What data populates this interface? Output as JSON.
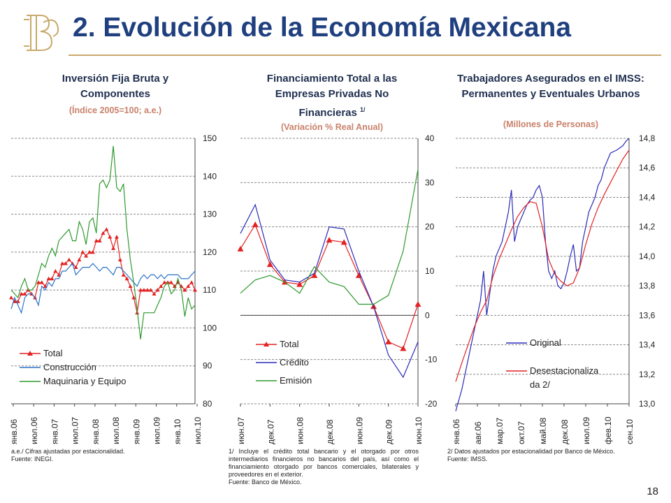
{
  "header": {
    "title": "2. Evolución de la Economía Mexicana",
    "page_number": "18"
  },
  "panels": [
    {
      "title": "Inversión Fija Bruta y Componentes",
      "subtitle": "(Índice 2005=100; a.e.)",
      "note": "a.e./ Cifras ajustadas por estacionalidad.\nFuente: INEGI."
    },
    {
      "title": "Financiamiento Total a las Empresas Privadas No Financieras",
      "title_sup": "1/",
      "subtitle": "(Variación % Real Anual)",
      "note": "1/ Incluye el crédito total bancario y el otorgado por otros intermediarios financieros no bancarios del país, así como el financiamiento otorgado por bancos comerciales, bilaterales y proveedores en el exterior.\nFuente: Banco de México."
    },
    {
      "title": "Trabajadores Asegurados en el IMSS: Permanentes y Eventuales Urbanos",
      "subtitle": "(Millones de Personas)",
      "note": "2/ Datos ajustados por estacionalidad por Banco de México.\nFuente: IMSS."
    }
  ],
  "colors": {
    "title": "#1f3f7f",
    "gold": "#c9a96b",
    "red": "#e32222",
    "blue": "#2b73c8",
    "navy": "#2a2ab8",
    "green": "#2e9a2e"
  },
  "chart_data": [
    {
      "type": "line",
      "x_tick_labels": [
        "янв.06",
        "июл.06",
        "янв.07",
        "июл.07",
        "янв.08",
        "июл.08",
        "янв.09",
        "июл.09",
        "янв.10",
        "июл.10"
      ],
      "n_months": 55,
      "ylim": [
        80,
        150
      ],
      "yticks": [
        80,
        90,
        100,
        110,
        120,
        130,
        140,
        150
      ],
      "grid": true,
      "legend_position": "bottom-left",
      "series": [
        {
          "name": "Total",
          "color": "#e32222",
          "marker": "triangle",
          "values": [
            108,
            107,
            107,
            109,
            109,
            110,
            109,
            108,
            112,
            112,
            111,
            113,
            113,
            115,
            114,
            117,
            117,
            118,
            117,
            116,
            118,
            120,
            119,
            120,
            120,
            123,
            123,
            125,
            126,
            124,
            121,
            124,
            118,
            114,
            113,
            111,
            108,
            104,
            110,
            110,
            110,
            110,
            109,
            110,
            111,
            112,
            112,
            112,
            111,
            112,
            111,
            110,
            111,
            112,
            110
          ]
        },
        {
          "name": "Construcción",
          "color": "#2b73c8",
          "marker": "none",
          "values": [
            105,
            108,
            106,
            104,
            108,
            109,
            109,
            108,
            106,
            111,
            110,
            112,
            111,
            113,
            113,
            115,
            115,
            116,
            117,
            114,
            115,
            116,
            116,
            116,
            117,
            116,
            115,
            116,
            116,
            115,
            114,
            116,
            116,
            115,
            114,
            113,
            112,
            111,
            113,
            114,
            113,
            114,
            114,
            113,
            114,
            113,
            114,
            114,
            114,
            114,
            113,
            113,
            113,
            114,
            115
          ]
        },
        {
          "name": "Maquinaria y Equipo",
          "color": "#2e9a2e",
          "marker": "none",
          "values": [
            110,
            109,
            108,
            111,
            113,
            110,
            110,
            111,
            114,
            117,
            116,
            119,
            121,
            119,
            123,
            124,
            125,
            126,
            123,
            123,
            128,
            126,
            122,
            128,
            129,
            125,
            138,
            139,
            137,
            139,
            148,
            137,
            136,
            138,
            126,
            118,
            112,
            105,
            97,
            104,
            104,
            104,
            104,
            106,
            108,
            111,
            112,
            109,
            110,
            113,
            110,
            103,
            108,
            105,
            106
          ]
        }
      ]
    },
    {
      "type": "line",
      "x_tick_labels": [
        "июн.07",
        "дек.07",
        "июн.08",
        "дек.08",
        "июн.09",
        "дек.09",
        "июн.10"
      ],
      "ylim": [
        -20,
        40
      ],
      "yticks": [
        -20,
        -10,
        0,
        10,
        20,
        30,
        40
      ],
      "grid": true,
      "legend_position": "bottom-left",
      "series": [
        {
          "name": "Total",
          "color": "#e32222",
          "marker": "triangle",
          "x": [
            0,
            0.5,
            1,
            1.5,
            2,
            2.5,
            3,
            3.5,
            4,
            4.5,
            5,
            5.5,
            6
          ],
          "values": [
            15,
            20.5,
            11.5,
            7.5,
            7,
            9,
            17,
            16.5,
            9,
            2,
            -6,
            -7.5,
            2.5
          ]
        },
        {
          "name": "Crédito",
          "color": "#2a2ab8",
          "marker": "none",
          "x": [
            0,
            0.5,
            1,
            1.5,
            2,
            2.5,
            3,
            3.5,
            4,
            4.5,
            5,
            5.5,
            6
          ],
          "values": [
            18.5,
            25,
            12.5,
            8,
            7.5,
            9.5,
            20,
            19.5,
            10,
            2,
            -9,
            -14,
            -6
          ]
        },
        {
          "name": "Emisión",
          "color": "#2e9a2e",
          "marker": "none",
          "x": [
            0,
            0.5,
            1,
            1.5,
            2,
            2.5,
            3,
            3.5,
            4,
            4.5,
            5,
            5.5,
            6
          ],
          "values": [
            5,
            8,
            9,
            7.5,
            5,
            11,
            7.5,
            6.5,
            2.5,
            2.5,
            4.5,
            14.5,
            33
          ]
        }
      ]
    },
    {
      "type": "line",
      "x_tick_labels": [
        "янв.06",
        "авг.06",
        "мар.07",
        "окт.07",
        "май.08",
        "дек.08",
        "июл.09",
        "фев.10",
        "сен.10"
      ],
      "ylim": [
        13.0,
        14.8
      ],
      "yticks": [
        "13,0",
        "13,2",
        "13,4",
        "13,6",
        "13,8",
        "14,0",
        "14,2",
        "14,4",
        "14,6",
        "14,8"
      ],
      "grid": true,
      "legend_position": "bottom-left",
      "series": [
        {
          "name": "Original",
          "color": "#2a2ab8",
          "marker": "none",
          "x": [
            0,
            2,
            4,
            6,
            7,
            8,
            9,
            10,
            11,
            12,
            13,
            14,
            15,
            16,
            17,
            18,
            19,
            20,
            21,
            22,
            23,
            24,
            25,
            26,
            27,
            28,
            29,
            30,
            31,
            32,
            33,
            34,
            35,
            36,
            37,
            38,
            39,
            40,
            41,
            42,
            43,
            44,
            45,
            46,
            47,
            48,
            49,
            50,
            52,
            54,
            55,
            56
          ],
          "values": [
            12.95,
            13.1,
            13.3,
            13.5,
            13.6,
            13.7,
            13.9,
            13.6,
            13.75,
            13.9,
            14.0,
            14.05,
            14.1,
            14.2,
            14.3,
            14.45,
            14.1,
            14.2,
            14.25,
            14.3,
            14.35,
            14.38,
            14.4,
            14.45,
            14.48,
            14.4,
            14.1,
            13.9,
            13.85,
            13.9,
            13.8,
            13.78,
            13.82,
            13.9,
            14.0,
            14.08,
            13.9,
            13.92,
            14.1,
            14.2,
            14.3,
            14.35,
            14.4,
            14.48,
            14.52,
            14.6,
            14.65,
            14.7,
            14.72,
            14.75,
            14.78,
            14.8
          ]
        },
        {
          "name": "Desestacionalizada 2/",
          "color": "#e32222",
          "marker": "none",
          "x": [
            0,
            2,
            4,
            6,
            8,
            10,
            12,
            14,
            16,
            18,
            20,
            22,
            24,
            26,
            28,
            30,
            32,
            34,
            36,
            38,
            40,
            42,
            44,
            46,
            48,
            50,
            52,
            54,
            56
          ],
          "values": [
            13.15,
            13.28,
            13.4,
            13.52,
            13.62,
            13.7,
            13.86,
            13.98,
            14.08,
            14.18,
            14.27,
            14.33,
            14.37,
            14.36,
            14.2,
            13.98,
            13.88,
            13.83,
            13.8,
            13.82,
            13.92,
            14.08,
            14.22,
            14.33,
            14.42,
            14.5,
            14.58,
            14.66,
            14.72
          ]
        }
      ]
    }
  ]
}
